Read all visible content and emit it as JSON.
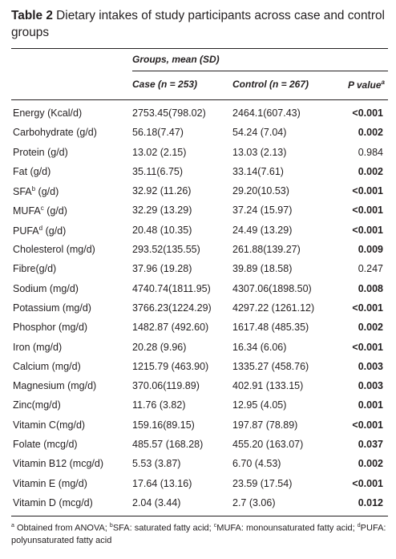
{
  "caption": {
    "label": "Table 2",
    "text": "Dietary intakes of study participants across case and control groups"
  },
  "header": {
    "group": "Groups, mean (SD)",
    "case": "Case (n = 253)",
    "control": "Control (n = 267)",
    "pvalue": "P value",
    "pvalue_sup": "a"
  },
  "rows": [
    {
      "name": "Energy (Kcal/d)",
      "sup": "",
      "case": "2753.45(798.02)",
      "control": "2464.1(607.43)",
      "p": "<0.001",
      "sig": true
    },
    {
      "name": "Carbohydrate (g/d)",
      "sup": "",
      "case": "56.18(7.47)",
      "control": "54.24 (7.04)",
      "p": "0.002",
      "sig": true
    },
    {
      "name": "Protein (g/d)",
      "sup": "",
      "case": "13.02 (2.15)",
      "control": "13.03 (2.13)",
      "p": "0.984",
      "sig": false
    },
    {
      "name": "Fat (g/d)",
      "sup": "",
      "case": "35.11(6.75)",
      "control": "33.14(7.61)",
      "p": "0.002",
      "sig": true
    },
    {
      "name": "SFA",
      "sup": "b",
      "suffix": " (g/d)",
      "case": "32.92 (11.26)",
      "control": "29.20(10.53)",
      "p": "<0.001",
      "sig": true
    },
    {
      "name": "MUFA",
      "sup": "c",
      "suffix": " (g/d)",
      "case": "32.29 (13.29)",
      "control": "37.24 (15.97)",
      "p": "<0.001",
      "sig": true
    },
    {
      "name": "PUFA",
      "sup": "d",
      "suffix": " (g/d)",
      "case": "20.48 (10.35)",
      "control": "24.49 (13.29)",
      "p": "<0.001",
      "sig": true
    },
    {
      "name": "Cholesterol (mg/d)",
      "sup": "",
      "case": "293.52(135.55)",
      "control": "261.88(139.27)",
      "p": "0.009",
      "sig": true
    },
    {
      "name": "Fibre(g/d)",
      "sup": "",
      "case": "37.96 (19.28)",
      "control": "39.89 (18.58)",
      "p": "0.247",
      "sig": false
    },
    {
      "name": "Sodium (mg/d)",
      "sup": "",
      "case": "4740.74(1811.95)",
      "control": "4307.06(1898.50)",
      "p": "0.008",
      "sig": true
    },
    {
      "name": "Potassium (mg/d)",
      "sup": "",
      "case": "3766.23(1224.29)",
      "control": "4297.22 (1261.12)",
      "p": "<0.001",
      "sig": true
    },
    {
      "name": "Phosphor (mg/d)",
      "sup": "",
      "case": "1482.87 (492.60)",
      "control": "1617.48 (485.35)",
      "p": "0.002",
      "sig": true
    },
    {
      "name": "Iron (mg/d)",
      "sup": "",
      "case": "20.28 (9.96)",
      "control": "16.34 (6.06)",
      "p": "<0.001",
      "sig": true
    },
    {
      "name": "Calcium (mg/d)",
      "sup": "",
      "case": "1215.79 (463.90)",
      "control": "1335.27 (458.76)",
      "p": "0.003",
      "sig": true
    },
    {
      "name": "Magnesium (mg/d)",
      "sup": "",
      "case": "370.06(119.89)",
      "control": "402.91 (133.15)",
      "p": "0.003",
      "sig": true
    },
    {
      "name": "Zinc(mg/d)",
      "sup": "",
      "case": "11.76 (3.82)",
      "control": "12.95 (4.05)",
      "p": "0.001",
      "sig": true
    },
    {
      "name": "Vitamin C(mg/d)",
      "sup": "",
      "case": "159.16(89.15)",
      "control": "197.87 (78.89)",
      "p": "<0.001",
      "sig": true
    },
    {
      "name": "Folate (mcg/d)",
      "sup": "",
      "case": "485.57 (168.28)",
      "control": "455.20 (163.07)",
      "p": "0.037",
      "sig": true
    },
    {
      "name": "Vitamin B12 (mcg/d)",
      "sup": "",
      "case": "5.53 (3.87)",
      "control": "6.70 (4.53)",
      "p": "0.002",
      "sig": true
    },
    {
      "name": "Vitamin E (mg/d)",
      "sup": "",
      "case": "17.64 (13.16)",
      "control": "23.59 (17.54)",
      "p": "<0.001",
      "sig": true
    },
    {
      "name": "Vitamin D (mcg/d)",
      "sup": "",
      "case": "2.04 (3.44)",
      "control": "2.7 (3.06)",
      "p": "0.012",
      "sig": true
    }
  ],
  "footnote": {
    "a_sup": "a",
    "a_text": " Obtained from ANOVA; ",
    "b_sup": "b",
    "b_text": "SFA: saturated fatty acid; ",
    "c_sup": "c",
    "c_text": "MUFA: monounsaturated fatty acid; ",
    "d_sup": "d",
    "d_text": "PUFA: polyunsaturated fatty acid"
  }
}
